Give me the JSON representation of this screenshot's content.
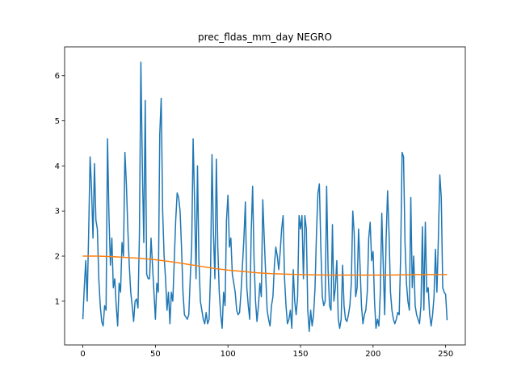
{
  "chart_data": {
    "type": "line",
    "title": "prec_fldas_mm_day NEGRO",
    "xlim": [
      -12.55,
      263.55
    ],
    "ylim": [
      0.03,
      6.64
    ],
    "xticks": [
      0,
      50,
      100,
      150,
      200,
      250
    ],
    "yticks": [
      1,
      2,
      3,
      4,
      5,
      6
    ],
    "series": [
      {
        "color": "#1f77b4",
        "x": [
          0,
          1,
          2,
          3,
          4,
          5,
          6,
          7,
          8,
          9,
          10,
          11,
          12,
          13,
          14,
          15,
          16,
          17,
          18,
          19,
          20,
          21,
          22,
          23,
          24,
          25,
          26,
          27,
          28,
          29,
          30,
          31,
          32,
          33,
          34,
          35,
          36,
          37,
          38,
          39,
          40,
          41,
          42,
          43,
          44,
          45,
          46,
          47,
          48,
          49,
          50,
          51,
          52,
          53,
          54,
          55,
          56,
          57,
          58,
          59,
          60,
          61,
          62,
          63,
          64,
          65,
          66,
          67,
          68,
          69,
          70,
          71,
          72,
          73,
          74,
          75,
          76,
          77,
          78,
          79,
          80,
          81,
          82,
          83,
          84,
          85,
          86,
          87,
          88,
          89,
          90,
          91,
          92,
          93,
          94,
          95,
          96,
          97,
          98,
          99,
          100,
          101,
          102,
          103,
          104,
          105,
          106,
          107,
          108,
          109,
          110,
          111,
          112,
          113,
          114,
          115,
          116,
          117,
          118,
          119,
          120,
          121,
          122,
          123,
          124,
          125,
          126,
          127,
          128,
          129,
          130,
          131,
          132,
          133,
          134,
          135,
          136,
          137,
          138,
          139,
          140,
          141,
          142,
          143,
          144,
          145,
          146,
          147,
          148,
          149,
          150,
          151,
          152,
          153,
          154,
          155,
          156,
          157,
          158,
          159,
          160,
          161,
          162,
          163,
          164,
          165,
          166,
          167,
          168,
          169,
          170,
          171,
          172,
          173,
          174,
          175,
          176,
          177,
          178,
          179,
          180,
          181,
          182,
          183,
          184,
          185,
          186,
          187,
          188,
          189,
          190,
          191,
          192,
          193,
          194,
          195,
          196,
          197,
          198,
          199,
          200,
          201,
          202,
          203,
          204,
          205,
          206,
          207,
          208,
          209,
          210,
          211,
          212,
          213,
          214,
          215,
          216,
          217,
          218,
          219,
          220,
          221,
          222,
          223,
          224,
          225,
          226,
          227,
          228,
          229,
          230,
          231,
          232,
          233,
          234,
          235,
          236,
          237,
          238,
          239,
          240,
          241,
          242,
          243,
          244,
          245,
          246,
          247,
          248,
          249,
          250,
          251
        ],
        "values": [
          0.6,
          1.3,
          1.9,
          1.0,
          2.5,
          4.2,
          3.5,
          2.4,
          4.05,
          2.8,
          2.6,
          1.5,
          0.9,
          0.55,
          0.45,
          0.9,
          0.8,
          4.6,
          2.9,
          1.8,
          2.4,
          1.3,
          1.5,
          0.9,
          0.45,
          1.4,
          1.2,
          2.3,
          2.0,
          4.3,
          3.6,
          2.6,
          1.8,
          1.2,
          0.9,
          0.55,
          1.0,
          1.05,
          0.85,
          2.5,
          6.3,
          4.0,
          2.3,
          5.45,
          1.6,
          1.5,
          1.5,
          2.4,
          1.8,
          1.2,
          0.6,
          1.4,
          1.2,
          4.7,
          5.5,
          3.0,
          2.0,
          1.5,
          0.8,
          1.2,
          0.5,
          1.2,
          1.0,
          1.9,
          2.8,
          3.4,
          3.3,
          3.0,
          2.2,
          1.2,
          0.7,
          0.65,
          0.6,
          0.7,
          1.5,
          2.2,
          4.6,
          3.2,
          1.5,
          4.0,
          1.9,
          1.0,
          0.8,
          0.6,
          0.5,
          0.75,
          0.5,
          0.6,
          1.6,
          4.25,
          2.5,
          1.5,
          4.15,
          2.2,
          1.2,
          0.7,
          0.4,
          1.2,
          0.9,
          2.8,
          3.35,
          2.2,
          2.4,
          1.6,
          1.4,
          1.2,
          0.8,
          0.7,
          0.75,
          1.2,
          1.8,
          2.4,
          3.2,
          1.3,
          0.9,
          0.6,
          2.5,
          3.55,
          1.9,
          1.0,
          0.55,
          0.9,
          1.4,
          1.1,
          3.25,
          2.4,
          1.6,
          0.8,
          0.6,
          0.45,
          0.9,
          1.1,
          1.8,
          2.2,
          2.0,
          1.7,
          2.1,
          2.6,
          2.9,
          1.5,
          0.9,
          0.5,
          0.6,
          0.8,
          0.4,
          1.7,
          1.0,
          0.7,
          1.1,
          2.9,
          2.6,
          2.9,
          1.5,
          2.9,
          2.6,
          0.8,
          0.33,
          0.8,
          0.45,
          0.7,
          1.3,
          2.5,
          3.4,
          3.6,
          2.2,
          1.1,
          0.9,
          1.0,
          3.55,
          1.7,
          0.9,
          0.8,
          2.7,
          1.0,
          1.3,
          1.9,
          0.6,
          0.4,
          0.6,
          1.8,
          0.9,
          0.6,
          0.55,
          0.7,
          0.9,
          1.4,
          3.0,
          2.5,
          1.1,
          1.3,
          2.6,
          1.8,
          0.9,
          0.5,
          0.7,
          0.8,
          1.2,
          2.4,
          2.75,
          1.9,
          2.1,
          1.0,
          0.4,
          0.6,
          0.45,
          1.2,
          2.95,
          1.8,
          0.7,
          2.4,
          3.45,
          2.5,
          1.2,
          0.8,
          0.6,
          0.5,
          0.6,
          0.75,
          0.7,
          2.0,
          4.3,
          4.2,
          2.3,
          1.4,
          1.0,
          0.8,
          3.3,
          1.3,
          2.0,
          0.9,
          0.7,
          0.6,
          0.5,
          0.9,
          2.65,
          0.8,
          2.75,
          1.2,
          1.3,
          0.7,
          0.45,
          0.7,
          1.1,
          2.15,
          1.2,
          2.4,
          3.8,
          3.3,
          1.3,
          1.2,
          1.15,
          0.58
        ]
      },
      {
        "color": "#ff7f0e",
        "x": [
          0,
          10,
          20,
          30,
          40,
          50,
          60,
          70,
          80,
          90,
          100,
          110,
          120,
          130,
          140,
          150,
          160,
          170,
          180,
          190,
          200,
          210,
          220,
          230,
          240,
          250,
          251
        ],
        "values": [
          2.0,
          2.0,
          1.99,
          1.97,
          1.95,
          1.92,
          1.88,
          1.83,
          1.78,
          1.73,
          1.69,
          1.66,
          1.63,
          1.61,
          1.6,
          1.59,
          1.585,
          1.58,
          1.58,
          1.58,
          1.58,
          1.58,
          1.585,
          1.59,
          1.59,
          1.59,
          1.59
        ]
      }
    ]
  }
}
